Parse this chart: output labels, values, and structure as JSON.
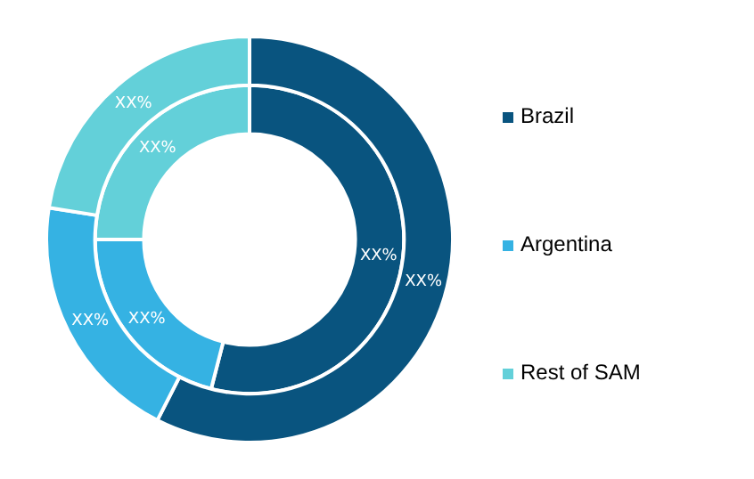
{
  "chart_data": {
    "type": "donut",
    "categories": [
      "Brazil",
      "Argentina",
      "Rest of SAM"
    ],
    "colors": [
      "#09547f",
      "#35b2e3",
      "#63d0d9"
    ],
    "series": [
      {
        "values": [
          57.5,
          20,
          22.5
        ],
        "value_labels": [
          "XX%",
          "XX%",
          "XX%"
        ]
      },
      {
        "values": [
          54,
          21,
          25
        ],
        "value_labels": [
          "XX%",
          "XX%",
          "XX%"
        ]
      }
    ],
    "legend": "right"
  }
}
